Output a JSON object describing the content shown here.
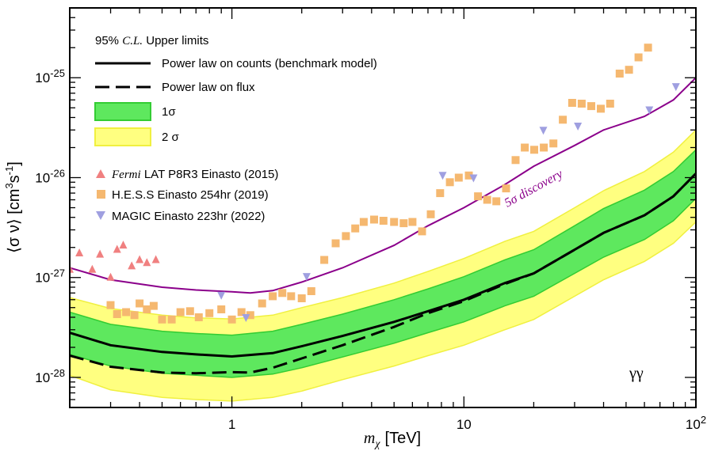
{
  "chart_data": {
    "type": "line",
    "title": "",
    "xlabel": {
      "symbol": "m",
      "subscript": "χ",
      "unit": "[TeV]"
    },
    "ylabel": {
      "pre": "⟨σ ν⟩ [cm",
      "sup1": "3",
      "mid": "s",
      "sup2": "-1",
      "post": "]"
    },
    "x_scale": "log",
    "y_scale": "log",
    "xlim": [
      0.2,
      100
    ],
    "ylim": [
      5e-29,
      5e-25
    ],
    "grid": false,
    "x_ticks": [
      {
        "value": 1,
        "label": "1"
      },
      {
        "value": 10,
        "label": "10"
      },
      {
        "value": 100,
        "label": "10",
        "sup": "2"
      }
    ],
    "y_ticks": [
      {
        "value": 1e-28,
        "label": "10",
        "sup": "-28"
      },
      {
        "value": 1e-27,
        "label": "10",
        "sup": "-27"
      },
      {
        "value": 1e-26,
        "label": "10",
        "sup": "-26"
      },
      {
        "value": 1e-25,
        "label": "10",
        "sup": "-25"
      }
    ],
    "channel_label": "γγ",
    "annotation": "5σ discovery",
    "legend": {
      "placement": "top-left",
      "header": {
        "pre": "95% ",
        "italic": "C.L.",
        "post": " Upper limits"
      },
      "items": [
        {
          "key": "counts",
          "symbol": "solid-line",
          "label": "Power law on counts (benchmark model)"
        },
        {
          "key": "flux",
          "symbol": "dashed-line",
          "label": "Power law on flux"
        },
        {
          "key": "band1",
          "symbol": "band-green",
          "label": "1σ"
        },
        {
          "key": "band2",
          "symbol": "band-yellow",
          "label": "2 σ"
        },
        {
          "key": "fermi",
          "symbol": "triangle-up",
          "italic": "Fermi",
          "label": " LAT P8R3 Einasto (2015)"
        },
        {
          "key": "hess",
          "symbol": "square",
          "label": "H.E.S.S Einasto 254hr (2019)"
        },
        {
          "key": "magic",
          "symbol": "triangle-down",
          "label": "MAGIC Einasto 223hr (2022)"
        }
      ]
    },
    "colors": {
      "counts": "#000000",
      "flux": "#000000",
      "band1_fill": "#5ee85e",
      "band1_edge": "#33cc33",
      "band2_fill": "#ffff80",
      "band2_edge": "#f0f040",
      "fermi": "#f08080",
      "hess": "#f5b870",
      "magic": "#9f9fe0",
      "discovery": "#8b008b"
    },
    "band_x": [
      0.2,
      0.3,
      0.5,
      0.7,
      1.0,
      1.5,
      2.0,
      3.0,
      5.0,
      7.0,
      10.0,
      15.0,
      20.0,
      30.0,
      40.0,
      60.0,
      80.0,
      100.0
    ],
    "series": [
      {
        "key": "counts",
        "x": [
          0.2,
          0.3,
          0.5,
          0.7,
          1.0,
          1.5,
          2.0,
          3.0,
          5.0,
          7.0,
          10.0,
          15.0,
          20.0,
          30.0,
          40.0,
          60.0,
          80.0,
          100.0
        ],
        "y": [
          2.8e-28,
          2.1e-28,
          1.8e-28,
          1.7e-28,
          1.62e-28,
          1.75e-28,
          2.05e-28,
          2.6e-28,
          3.6e-28,
          4.6e-28,
          6e-28,
          8.8e-28,
          1.1e-27,
          1.9e-27,
          2.8e-27,
          4.2e-27,
          6.5e-27,
          1.1e-26
        ]
      },
      {
        "key": "flux",
        "x": [
          0.2,
          0.3,
          0.5,
          0.7,
          1.0,
          1.2,
          1.5,
          2.0,
          3.0,
          5.0,
          7.0,
          10.0,
          15.0,
          20.0,
          30.0,
          40.0,
          60.0,
          80.0,
          100.0
        ],
        "y": [
          1.65e-28,
          1.28e-28,
          1.12e-28,
          1.1e-28,
          1.13e-28,
          1.12e-28,
          1.25e-28,
          1.55e-28,
          2.1e-28,
          3.2e-28,
          4.4e-28,
          5.8e-28,
          8.6e-28,
          1.1e-27,
          1.9e-27,
          2.8e-27,
          4.2e-27,
          6.5e-27,
          1.1e-26
        ]
      },
      {
        "key": "band1_upper",
        "x": [
          0.2,
          0.3,
          0.5,
          0.7,
          1.0,
          1.5,
          2.0,
          3.0,
          5.0,
          7.0,
          10.0,
          15.0,
          20.0,
          30.0,
          40.0,
          60.0,
          80.0,
          100.0
        ],
        "y": [
          4.5e-28,
          3.4e-28,
          2.9e-28,
          2.75e-28,
          2.65e-28,
          2.9e-28,
          3.4e-28,
          4.3e-28,
          6e-28,
          7.7e-28,
          1.02e-27,
          1.5e-27,
          1.9e-27,
          3.3e-27,
          4.9e-27,
          7.5e-27,
          1.15e-26,
          1.9e-26
        ]
      },
      {
        "key": "band1_lower",
        "x": [
          0.2,
          0.3,
          0.5,
          0.7,
          1.0,
          1.5,
          2.0,
          3.0,
          5.0,
          7.0,
          10.0,
          15.0,
          20.0,
          30.0,
          40.0,
          60.0,
          80.0,
          100.0
        ],
        "y": [
          1.7e-28,
          1.3e-28,
          1.1e-28,
          1.05e-28,
          1e-28,
          1.08e-28,
          1.25e-28,
          1.6e-28,
          2.2e-28,
          2.8e-28,
          3.6e-28,
          5.2e-28,
          6.5e-28,
          1.1e-27,
          1.6e-27,
          2.4e-27,
          3.7e-27,
          6.2e-27
        ]
      },
      {
        "key": "band2_upper",
        "x": [
          0.2,
          0.3,
          0.5,
          0.7,
          1.0,
          1.5,
          2.0,
          3.0,
          5.0,
          7.0,
          10.0,
          15.0,
          20.0,
          30.0,
          40.0,
          60.0,
          80.0,
          100.0
        ],
        "y": [
          6.3e-28,
          4.9e-28,
          4.2e-28,
          3.95e-28,
          3.85e-28,
          4.2e-28,
          5e-28,
          6.3e-28,
          8.8e-28,
          1.15e-27,
          1.55e-27,
          2.3e-27,
          2.9e-27,
          5e-27,
          7.4e-27,
          1.15e-26,
          1.8e-26,
          3e-26
        ]
      },
      {
        "key": "band2_lower",
        "x": [
          0.2,
          0.3,
          0.5,
          0.7,
          1.0,
          1.5,
          2.0,
          3.0,
          5.0,
          7.0,
          10.0,
          15.0,
          20.0,
          30.0,
          40.0,
          60.0,
          80.0,
          100.0
        ],
        "y": [
          1.05e-28,
          7.5e-29,
          6.3e-29,
          6e-29,
          5.8e-29,
          6.3e-29,
          7.3e-29,
          9.5e-29,
          1.3e-28,
          1.65e-28,
          2.1e-28,
          3e-28,
          3.8e-28,
          6.5e-28,
          9.5e-28,
          1.45e-27,
          2.2e-27,
          3.6e-27
        ]
      },
      {
        "key": "discovery",
        "x": [
          0.2,
          0.3,
          0.5,
          0.7,
          1.0,
          1.2,
          1.5,
          2.0,
          3.0,
          5.0,
          7.0,
          10.0,
          15.0,
          20.0,
          30.0,
          40.0,
          60.0,
          80.0,
          100.0
        ],
        "y": [
          1.25e-27,
          9.5e-28,
          8e-28,
          7.5e-28,
          7.2e-28,
          7e-28,
          7.4e-28,
          9e-28,
          1.25e-27,
          2.1e-27,
          3.3e-27,
          5e-27,
          8.5e-27,
          1.3e-26,
          2.1e-26,
          3e-26,
          4.1e-26,
          6e-26,
          1e-25
        ]
      }
    ],
    "points": {
      "fermi": {
        "x": [
          0.2,
          0.22,
          0.25,
          0.27,
          0.3,
          0.32,
          0.34,
          0.37,
          0.4,
          0.43,
          0.47
        ],
        "y": [
          1.2e-27,
          1.75e-27,
          1.2e-27,
          1.7e-27,
          1e-27,
          1.9e-27,
          2.1e-27,
          1.3e-27,
          1.5e-27,
          1.4e-27,
          1.5e-27
        ]
      },
      "hess": {
        "x": [
          0.3,
          0.32,
          0.35,
          0.38,
          0.4,
          0.43,
          0.46,
          0.5,
          0.55,
          0.6,
          0.66,
          0.72,
          0.8,
          0.9,
          1.0,
          1.1,
          1.2,
          1.35,
          1.5,
          1.65,
          1.8,
          2.0,
          2.2,
          2.5,
          2.8,
          3.1,
          3.4,
          3.7,
          4.1,
          4.5,
          5.0,
          5.5,
          6.0,
          6.6,
          7.2,
          7.9,
          8.7,
          9.5,
          10.5,
          11.5,
          12.6,
          13.8,
          15.2,
          16.7,
          18.3,
          20.1,
          22.1,
          24.3,
          26.7,
          29.3,
          32.2,
          35.4,
          38.9,
          42.7,
          46.9,
          51.5,
          56.6,
          62.2
        ],
        "y": [
          5.3e-28,
          4.3e-28,
          4.5e-28,
          4.2e-28,
          5.5e-28,
          4.8e-28,
          5.2e-28,
          3.8e-28,
          3.8e-28,
          4.5e-28,
          4.6e-28,
          4e-28,
          4.4e-28,
          4.8e-28,
          3.8e-28,
          4.5e-28,
          4.2e-28,
          5.5e-28,
          6.5e-28,
          7e-28,
          6.5e-28,
          6.2e-28,
          7.3e-28,
          1.5e-27,
          2.2e-27,
          2.6e-27,
          3.1e-27,
          3.6e-27,
          3.8e-27,
          3.7e-27,
          3.6e-27,
          3.5e-27,
          3.6e-27,
          2.9e-27,
          4.3e-27,
          7e-27,
          9e-27,
          1e-26,
          1.05e-26,
          6.5e-27,
          6e-27,
          5.8e-27,
          7.8e-27,
          1.5e-26,
          2e-26,
          1.9e-26,
          2e-26,
          2.2e-26,
          3.8e-26,
          5.6e-26,
          5.5e-26,
          5.2e-26,
          4.9e-26,
          5.5e-26,
          1.1e-25,
          1.2e-25,
          1.6e-25,
          2e-25
        ]
      },
      "magic": {
        "x": [
          0.9,
          1.15,
          2.1,
          8.1,
          11.0,
          22.0,
          31.0,
          63.0,
          82.0
        ],
        "y": [
          6.7e-28,
          4e-28,
          1.03e-27,
          1.06e-26,
          1e-26,
          3e-26,
          3.3e-26,
          4.8e-26,
          8.2e-26
        ]
      }
    }
  }
}
